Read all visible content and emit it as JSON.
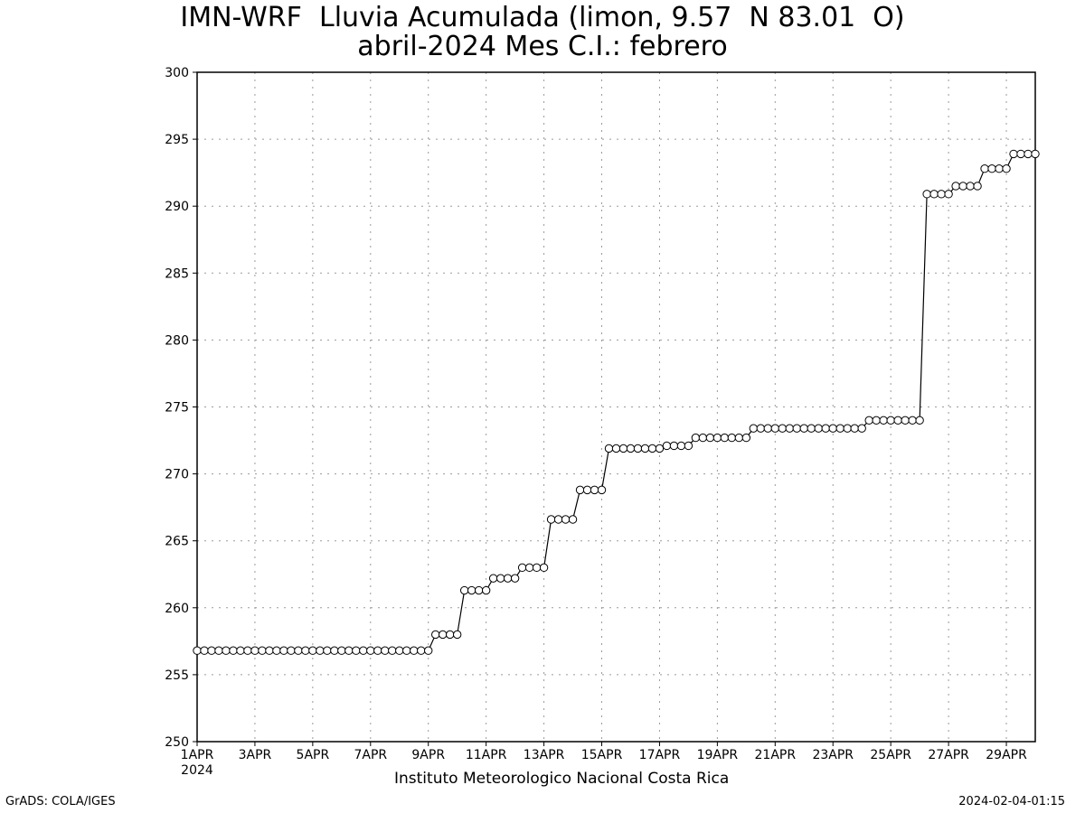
{
  "title_line1": "IMN-WRF  Lluvia Acumulada (limon, 9.57  N 83.01  O)",
  "title_line2": "abril-2024 Mes C.I.: febrero",
  "credit": "Instituto Meteorologico Nacional Costa Rica",
  "footer_left": "GrADS: COLA/IGES",
  "footer_right": "2024-02-04-01:15",
  "chart_data": {
    "type": "line",
    "title": "IMN-WRF  Lluvia Acumulada (limon, 9.57  N 83.01  O)",
    "subtitle": "abril-2024 Mes C.I.: febrero",
    "xlabel": "",
    "ylabel": "",
    "ylim": [
      250,
      300
    ],
    "yticks": [
      250,
      255,
      260,
      265,
      270,
      275,
      280,
      285,
      290,
      295,
      300
    ],
    "xlim_days": [
      1,
      30
    ],
    "x_tick_days": [
      1,
      3,
      5,
      7,
      9,
      11,
      13,
      15,
      17,
      19,
      21,
      23,
      25,
      27,
      29
    ],
    "x_tick_labels": [
      "1APR",
      "3APR",
      "5APR",
      "7APR",
      "9APR",
      "11APR",
      "13APR",
      "15APR",
      "17APR",
      "19APR",
      "21APR",
      "23APR",
      "25APR",
      "27APR",
      "29APR"
    ],
    "x_year_label": "2024",
    "x_units": "day of April 2024 (6-hourly steps)",
    "grid": true,
    "marker": "open-circle",
    "series": [
      {
        "steps": [
          {
            "from_day": 1.0,
            "to_day": 9.0,
            "value": 256.8
          },
          {
            "from_day": 9.25,
            "to_day": 10.0,
            "value": 258.0
          },
          {
            "from_day": 10.25,
            "to_day": 11.0,
            "value": 261.3
          },
          {
            "from_day": 11.25,
            "to_day": 12.0,
            "value": 262.2
          },
          {
            "from_day": 12.25,
            "to_day": 13.0,
            "value": 263.0
          },
          {
            "from_day": 13.25,
            "to_day": 14.0,
            "value": 266.6
          },
          {
            "from_day": 14.25,
            "to_day": 15.0,
            "value": 268.8
          },
          {
            "from_day": 15.25,
            "to_day": 17.0,
            "value": 271.9
          },
          {
            "from_day": 17.25,
            "to_day": 18.0,
            "value": 272.1
          },
          {
            "from_day": 18.25,
            "to_day": 20.0,
            "value": 272.7
          },
          {
            "from_day": 20.25,
            "to_day": 24.0,
            "value": 273.4
          },
          {
            "from_day": 24.25,
            "to_day": 26.0,
            "value": 274.0
          },
          {
            "from_day": 26.25,
            "to_day": 27.0,
            "value": 290.9
          },
          {
            "from_day": 27.25,
            "to_day": 28.0,
            "value": 291.5
          },
          {
            "from_day": 28.25,
            "to_day": 29.0,
            "value": 292.8
          },
          {
            "from_day": 29.25,
            "to_day": 30.0,
            "value": 293.9
          }
        ]
      }
    ]
  }
}
